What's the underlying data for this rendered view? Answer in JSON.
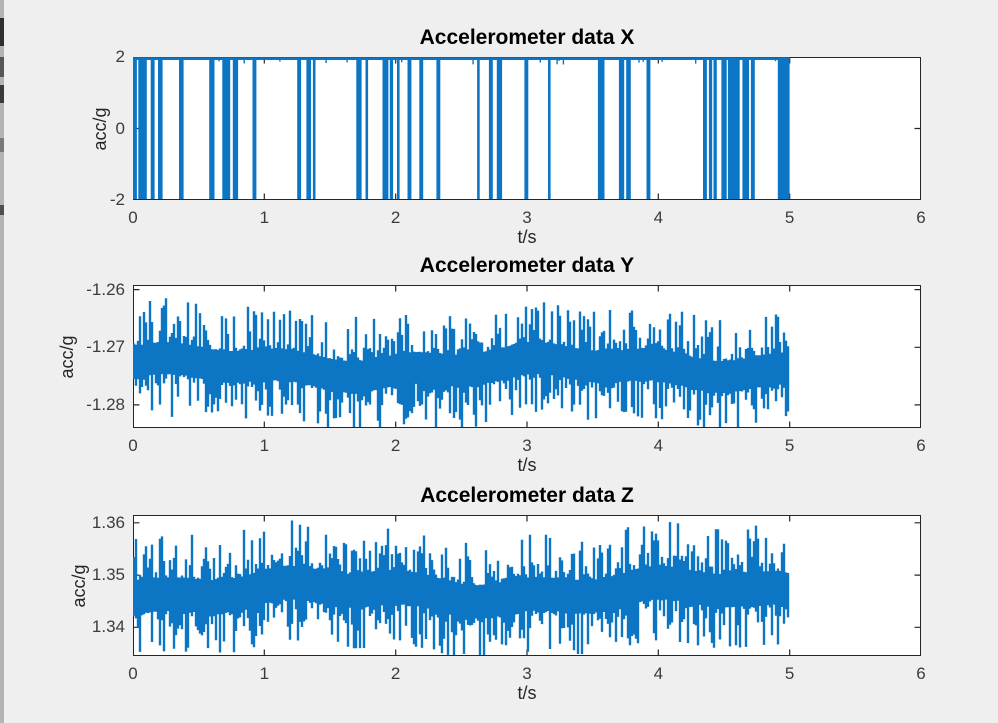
{
  "figure": {
    "background_color": "#efefef",
    "plot_background": "#ffffff",
    "axes_color": "#262626",
    "tick_label_color": "#3c3c3c",
    "line_color": "#0d76c4"
  },
  "chart_data": [
    {
      "type": "line",
      "title": "Accelerometer data X",
      "xlabel": "t/s",
      "ylabel": "acc/g",
      "xlim": [
        0,
        6
      ],
      "ylim": [
        -2,
        2
      ],
      "xticks": [
        0,
        1,
        2,
        3,
        4,
        5,
        6
      ],
      "xticklabels": [
        "0",
        "1",
        "2",
        "3",
        "4",
        "5",
        "6"
      ],
      "yticks": [
        2,
        0,
        -2
      ],
      "yticklabels": [
        "2",
        "0",
        "-2"
      ],
      "grid": false,
      "legend": null,
      "signal": {
        "kind": "square_dropout",
        "high_value": 2,
        "low_value": -2,
        "t_start": 0,
        "t_end": 5,
        "seed": 3,
        "drop_intervals": [
          [
            0.0,
            0.03
          ],
          [
            0.04,
            0.105
          ],
          [
            0.135,
            0.165
          ],
          [
            0.19,
            0.225
          ],
          [
            0.35,
            0.385
          ],
          [
            0.58,
            0.62
          ],
          [
            0.68,
            0.74
          ],
          [
            0.76,
            0.8
          ],
          [
            0.91,
            0.94
          ],
          [
            1.25,
            1.28
          ],
          [
            1.32,
            1.355
          ],
          [
            1.37,
            1.39
          ],
          [
            1.7,
            1.74
          ],
          [
            1.77,
            1.79
          ],
          [
            1.9,
            1.945
          ],
          [
            1.955,
            1.98
          ],
          [
            2.01,
            2.03
          ],
          [
            2.09,
            2.12
          ],
          [
            2.18,
            2.21
          ],
          [
            2.31,
            2.34
          ],
          [
            2.62,
            2.64
          ],
          [
            2.71,
            2.74
          ],
          [
            2.77,
            2.81
          ],
          [
            2.98,
            3.01
          ],
          [
            3.16,
            3.18
          ],
          [
            3.54,
            3.59
          ],
          [
            3.7,
            3.74
          ],
          [
            3.755,
            3.79
          ],
          [
            3.91,
            3.94
          ],
          [
            4.34,
            4.37
          ],
          [
            4.385,
            4.41
          ],
          [
            4.42,
            4.445
          ],
          [
            4.48,
            4.52
          ],
          [
            4.53,
            4.62
          ],
          [
            4.64,
            4.69
          ],
          [
            4.705,
            4.735
          ],
          [
            4.91,
            5.0
          ]
        ]
      }
    },
    {
      "type": "line",
      "title": "Accelerometer data Y",
      "xlabel": "t/s",
      "ylabel": "acc/g",
      "xlim": [
        0,
        6
      ],
      "ylim": [
        -1.284,
        -1.2592
      ],
      "xticks": [
        0,
        1,
        2,
        3,
        4,
        5,
        6
      ],
      "xticklabels": [
        "0",
        "1",
        "2",
        "3",
        "4",
        "5",
        "6"
      ],
      "yticks": [
        -1.26,
        -1.27,
        -1.28
      ],
      "yticklabels": [
        "-1.26",
        "-1.27",
        "-1.28"
      ],
      "grid": false,
      "legend": null,
      "signal": {
        "kind": "noise",
        "mean": -1.2735,
        "envelope": 0.0105,
        "up_max": 0.0122,
        "down_max": 0.0102,
        "t_start": 0,
        "t_end": 5,
        "n_points": 2500,
        "seed": 7
      }
    },
    {
      "type": "line",
      "title": "Accelerometer data Z",
      "xlabel": "t/s",
      "ylabel": "acc/g",
      "xlim": [
        0,
        6
      ],
      "ylim": [
        1.3345,
        1.3615
      ],
      "xticks": [
        0,
        1,
        2,
        3,
        4,
        5,
        6
      ],
      "xticklabels": [
        "0",
        "1",
        "2",
        "3",
        "4",
        "5",
        "6"
      ],
      "yticks": [
        1.36,
        1.35,
        1.34
      ],
      "yticklabels": [
        "1.36",
        "1.35",
        "1.34"
      ],
      "grid": false,
      "legend": null,
      "signal": {
        "kind": "noise",
        "mean": 1.3467,
        "envelope": 0.0122,
        "up_max": 0.0146,
        "down_max": 0.011,
        "t_start": 0,
        "t_end": 5,
        "n_points": 2500,
        "seed": 11
      }
    }
  ]
}
